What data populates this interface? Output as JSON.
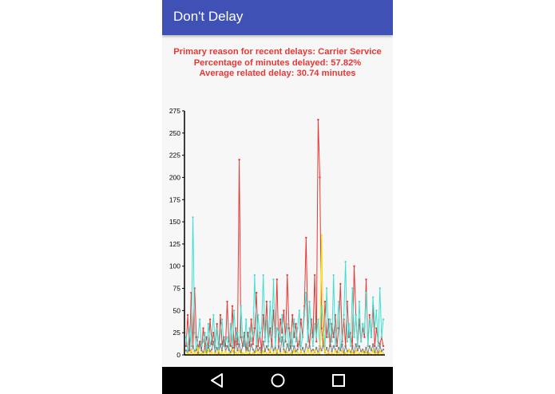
{
  "app": {
    "title": "Don't Delay"
  },
  "summary": {
    "reason": "Primary reason for recent delays: Carrier Service",
    "percentage": "Percentage of minutes delayed: 57.82%",
    "average": "Average related delay: 30.74 minutes"
  },
  "colors": {
    "app_bar": "#3f51b5",
    "summary_text": "#e53935",
    "nav_bar": "#000000"
  },
  "nav": {
    "back_icon": "back-triangle-icon",
    "home_icon": "home-circle-icon",
    "recents_icon": "recents-square-icon"
  },
  "chart_data": {
    "type": "line",
    "ylim": [
      0,
      275
    ],
    "yticks": [
      0,
      25,
      50,
      75,
      100,
      125,
      150,
      175,
      200,
      225,
      250,
      275
    ],
    "series": [
      {
        "color": "#e53935",
        "values": [
          10,
          45,
          5,
          70,
          10,
          75,
          20,
          8,
          15,
          5,
          30,
          10,
          20,
          8,
          40,
          12,
          25,
          10,
          35,
          5,
          45,
          12,
          20,
          10,
          60,
          15,
          10,
          55,
          8,
          30,
          12,
          220,
          20,
          10,
          15,
          5,
          25,
          10,
          40,
          12,
          30,
          70,
          10,
          25,
          5,
          45,
          20,
          60,
          15,
          30,
          10,
          50,
          20,
          85,
          10,
          40,
          25,
          50,
          15,
          90,
          30,
          10,
          45,
          20,
          35,
          10,
          15,
          40,
          20,
          55,
          132,
          30,
          10,
          40,
          20,
          90,
          15,
          265,
          200,
          30,
          10,
          60,
          20,
          40,
          10,
          35,
          20,
          45,
          10,
          30,
          80,
          15,
          40,
          10,
          60,
          20,
          25,
          10,
          100,
          45,
          10,
          40,
          15,
          30,
          20,
          85,
          10,
          45,
          20,
          55,
          10,
          30,
          15,
          12,
          20,
          10
        ]
      },
      {
        "color": "#40e0d0",
        "values": [
          20,
          5,
          30,
          10,
          155,
          25,
          5,
          20,
          40,
          10,
          15,
          25,
          5,
          35,
          10,
          20,
          45,
          8,
          30,
          5,
          25,
          40,
          10,
          15,
          20,
          5,
          35,
          10,
          50,
          15,
          25,
          10,
          55,
          20,
          10,
          40,
          5,
          30,
          15,
          25,
          90,
          10,
          45,
          20,
          30,
          90,
          15,
          40,
          10,
          60,
          20,
          85,
          10,
          30,
          25,
          15,
          45,
          10,
          20,
          35,
          5,
          25,
          10,
          40,
          15,
          30,
          50,
          10,
          20,
          45,
          70,
          15,
          60,
          25,
          10,
          35,
          20,
          40,
          10,
          55,
          30,
          10,
          75,
          20,
          40,
          15,
          90,
          10,
          30,
          60,
          5,
          20,
          45,
          105,
          15,
          35,
          10,
          75,
          20,
          45,
          10,
          60,
          15,
          35,
          25,
          70,
          10,
          40,
          20,
          65,
          30,
          50,
          10,
          75,
          20,
          40
        ]
      },
      {
        "color": "#808080",
        "values": [
          5,
          2,
          8,
          3,
          10,
          4,
          6,
          2,
          12,
          5,
          3,
          8,
          2,
          10,
          4,
          6,
          15,
          3,
          8,
          2,
          12,
          5,
          20,
          4,
          10,
          6,
          3,
          8,
          2,
          15,
          5,
          12,
          3,
          10,
          25,
          4,
          8,
          2,
          12,
          6,
          3,
          10,
          5,
          8,
          2,
          15,
          4,
          10,
          6,
          3,
          12,
          5,
          8,
          2,
          10,
          4,
          20,
          6,
          3,
          12,
          5,
          8,
          2,
          10,
          4,
          6,
          15,
          3,
          8,
          2,
          12,
          5,
          10,
          4,
          6,
          3,
          8,
          2,
          10,
          5,
          12,
          3,
          8,
          2,
          15,
          4,
          10,
          6,
          3,
          8,
          5,
          12,
          2,
          10,
          4,
          6,
          3,
          8,
          2,
          12,
          5,
          10,
          4,
          6,
          3,
          8,
          2,
          10,
          5,
          12,
          3,
          8,
          2,
          10,
          4,
          6
        ]
      },
      {
        "color": "#ffd600",
        "values": [
          0,
          2,
          0,
          5,
          0,
          3,
          0,
          8,
          0,
          2,
          0,
          4,
          0,
          6,
          0,
          3,
          0,
          2,
          0,
          5,
          0,
          3,
          0,
          4,
          0,
          2,
          0,
          6,
          0,
          3,
          0,
          5,
          0,
          2,
          0,
          4,
          0,
          3,
          0,
          2,
          0,
          5,
          0,
          3,
          0,
          4,
          0,
          2,
          0,
          6,
          0,
          3,
          0,
          5,
          0,
          2,
          0,
          4,
          0,
          3,
          0,
          2,
          0,
          5,
          0,
          3,
          0,
          4,
          0,
          2,
          0,
          6,
          0,
          3,
          0,
          5,
          0,
          2,
          0,
          135,
          20,
          4,
          0,
          3,
          0,
          2,
          0,
          5,
          0,
          3,
          0,
          4,
          0,
          2,
          0,
          6,
          0,
          3,
          0,
          5,
          0,
          2,
          0,
          4,
          0,
          3,
          0,
          2,
          0,
          5,
          0,
          3,
          0,
          4,
          0,
          2
        ]
      }
    ]
  }
}
